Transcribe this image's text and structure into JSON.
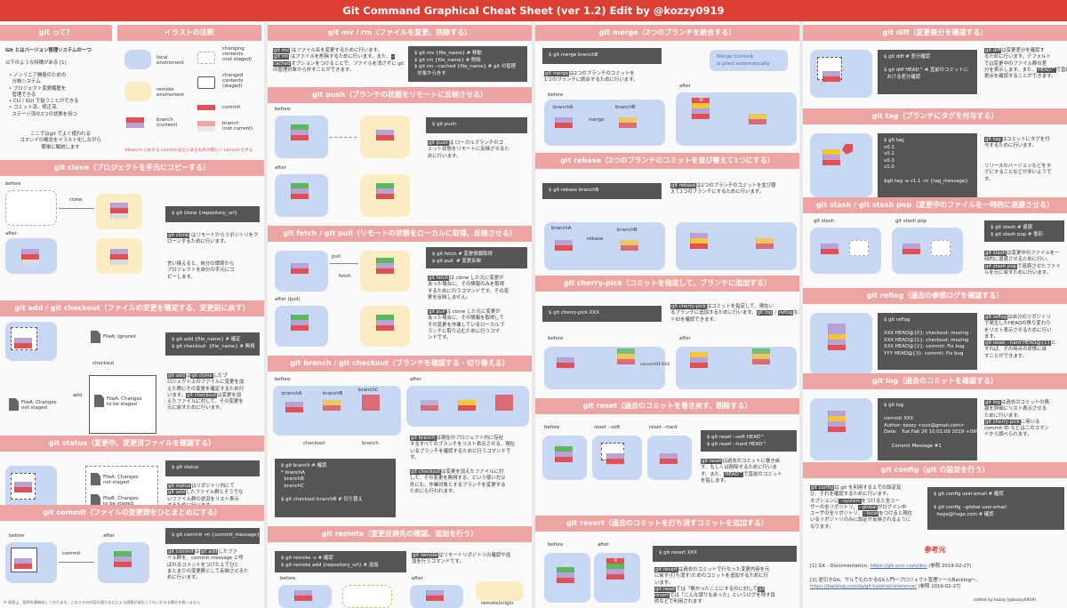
{
  "header": {
    "title": "Git Command Graphical Cheat Sheet (ver 1.2)  Edit by @kozzy0919"
  },
  "c1": {
    "sec_git": "git って？",
    "sec_legend": "イラストの注釈",
    "intro_bold": "Git とはバージョン管理システムの一つ",
    "intro_lead": "以下のような特徴がある [1]",
    "intro_items": [
      "ノンリニア開発のための",
      "分岐システム",
      "プロジェクト変更履歴を",
      "管理できる",
      "CLI / GUI で扱うことができる",
      "コミット済、修正済、",
      "ステージ済の3つの状態を持つ"
    ],
    "intro_note": "ここではgit でよく使われる\nコマンドの概念をイラスト化しながら\n簡単に解説します",
    "legend": {
      "local": "local\nenviroment",
      "remote": "remote\nenviroment",
      "branch_cur": "branch\n(current)",
      "changing": "changing\ncontents\n(not staged)",
      "changed": "changed\ncontents\n(staged)",
      "commit": "commit",
      "branch_nc": "branch\n(not current)",
      "note": "※branch における commit は上にあるものが新しい commit とする"
    },
    "sec_clone": "git clone（プロジェクトを手元にコピーする）",
    "clone": {
      "before": "before",
      "after": "after",
      "arrow": "clone",
      "cmd": "$ git clone {repository_url}",
      "kw": "git clone",
      "desc": "はリモートからリポジトリをクローンするために行います。",
      "desc2": "言い換えると、自分の環境から\nプロジェクトを自分の手元にコ\nピーします。"
    },
    "sec_add": "git add / git checkout（ファイルの変更を確定する、変更前に戻す）",
    "add": {
      "ignored": "FileA: Ignored",
      "cmd": "$ git add {file_name} # 確定\n$ git checkout  {file_name} # 無視",
      "checkout": "checkout",
      "add": "add",
      "notstaged": "FileA: Changes\nnot staged",
      "staged": "FileA: Changes\nto be staged",
      "kw1": "git add",
      "kw2": "git clone",
      "kw3": "git checkout",
      "desc_a": "は",
      "desc_b": "したプ\nロジェクト上のファイルに変更を加\nえた際にその変更を確定するため行\nいます。",
      "desc_c": "は変更を加\nえたファイルに対して、その変更を\n元に戻すために行います。"
    },
    "sec_status": "git status（変更中、変更済ファイルを確認する）",
    "status": {
      "cmd": "$ git status",
      "fa": "FileA: Changes\nnot staged",
      "fb": "FileB: Changes\nto be staged",
      "kw1": "git status",
      "kw2": "git add",
      "desc_a": "はリポジトリ内にて",
      "desc_b": "したファイル群とそうでな\nいファイル群の状況をリスト表示\nするために行います。"
    },
    "sec_commit": "git commit（ファイルの変更群をひとまとめにする）",
    "commit": {
      "before": "before",
      "after": "after",
      "arrow": "commit",
      "cmd": "$ git commit -m {commit_message}",
      "kw1": "git commit",
      "kw2": "git add",
      "desc_a": "は",
      "desc_b": "したファ\nイル群を、commit message と呼\nばれるコメントをつけた上でひと\nまとまりの変更群として反映させるた\nめに行います。"
    },
    "footer": "※ 表現上、説明を簡略化しております。このメモの内容の誤りなどによる損害が発生してもいかなる責任を負いません"
  },
  "c2": {
    "sec_mv": "git mv / rm（ファイルを変更、削除する）",
    "mv": {
      "kw1": "git mv",
      "kw2": "git rm",
      "kw3": "--cached",
      "d1": "はファイル名を変更するために行います。",
      "d2": "はファイルを削除するために行います。また、",
      "d3": "オプションをつけることで、ファイルを消さずに git の管理対象から外すことができます。",
      "cmd": "$ git mv {file_name} # 移動\n$ git rm {file_name} # 削除\n$ git rm --cached {file_name} # git の管理\n  対象から外す"
    },
    "sec_push": "git push（ブランチの状態をリモートに反映させる）",
    "push": {
      "before": "before",
      "after": "after",
      "cmd": "$ git push",
      "kw": "git push",
      "desc": "は ローカルブランチのコ\nミット状態をリモートに反映させるた\nめに行います。"
    },
    "sec_fetch": "git fetch / git pull（リモートの状態をローカルに取得、反映させる）",
    "fetch": {
      "pull": "pull",
      "fetch": "fetch",
      "after_pull": "after (pull)",
      "cmd": "$ git fetch # 変更情報取得\n$ git pull  # 変更反映",
      "kw1": "git fetch",
      "d1": "は clone した元に変更が\nあった場合に、その情報のみを取得\nするために行うコマンドです。その変\n更を反映しません。",
      "kw2": "git pull",
      "d2": "は clone した元に変更が\nあった場合に、その情報を取得して\nその変更を作業しているローカルブ\nランチに取り込むために行うコマ\nンドです。"
    },
    "sec_branch": "git branch / git checkout（ブランチを確認する・切り替える）",
    "branch": {
      "before": "before",
      "after": "after",
      "a": "branchA",
      "b": "branchB",
      "c": "branchC",
      "checkout": "checkout",
      "branch": "branch",
      "cmd": "$ git branch # 確認\n* branchA\n  branchB\n  branchC\n\n$ git checkout branchB # 切り替え",
      "kw1": "git branch",
      "d1": "は現在のプロジェクト内に存在\nするすべてのブランチをリスト表示させる、現在\nいるブランチを確認するために行うコマンドで\nす。",
      "kw2": "git checkout",
      "d2": "は変更を加えたファイルに対\nして、その変更を無視する、という使い方以\n外にも、作業対象とするブランチを変更する\nためにも行われます。"
    },
    "sec_remote": "git remote（変更反映先の確認、追加を行う）",
    "remote": {
      "cmd": "$ git remote -v # 確認\n$ git remote add {repository_url} # 追加",
      "kw": "git remote",
      "desc": "はリモートリポジトリの確認や追\n加を行うコマンドです。",
      "before": "before",
      "after": "after",
      "origin": "remote/origin"
    }
  },
  "c3": {
    "sec_merge": "git merge（2つのブランチを統合する）",
    "merge": {
      "cmd": "$ git merge branchB",
      "kw": "git merge",
      "desc": "は2つのブランチのコミットを\n1つのブランチに統合するために行います。",
      "before": "before",
      "after": "after",
      "a": "branchA",
      "b": "branchB",
      "arrow": "merge",
      "bubble": "Merge Commit\nis piled automatically",
      "m": "M"
    },
    "sec_rebase": "git rebase（2つのブランチのコミットを並び替えて1つにする）",
    "rebase": {
      "cmd": "$ git rebase branchB",
      "kw": "git rebase",
      "desc": "は2つのブランチのコミットを並び替\nえて1つのブランチにするために行います。",
      "a": "branchA",
      "b": "branchB",
      "arrow": "rebase"
    },
    "sec_cp": "git cherry-pick（コミットを指定して、ブランチに追加する）",
    "cp": {
      "cmd": "$ git cherry-pick XXX",
      "kw1": "git cherry-pick",
      "d1": "はコミットを指定して、現在い\nるブランチに追加するために行います。",
      "kw2": "git log",
      "kw3": "reflog",
      "d2": "などによって、指定するためのコミッ\nトIDを確認できます。",
      "before": "before",
      "after": "after",
      "id": "commitID:XXX"
    },
    "sec_reset": "git reset（過去のコミットを巻き戻す、削除する）",
    "reset": {
      "before": "before",
      "soft": "reset --soft",
      "hard": "reset --hard",
      "cmd": "$ git reset --soft HEAD^\n$ git reset --hard HEAD^",
      "kw": "git reset",
      "desc": "は過去のコミットに巻き戻\nす、もしくは削除するために行いま\nす。また、",
      "kw2": "HEAD^",
      "desc2": "で直前のコミット\nを指します。"
    },
    "sec_revert": "git revert（過去のコミットを打ち消すコミットを追加する）",
    "revert": {
      "before": "before",
      "after": "after",
      "cmd": "$ git revert XXX",
      "kw": "git revert",
      "desc": "は過去のコミットで行なった変更内容を元\nに戻す(打ち消す)ためのコミットを追加するために行\nいます。",
      "kw2": "git reset",
      "d2": "では「無かったことにするのに対して",
      "kw3": "git\nrevert",
      "d3": "では「こんな誤りもあった」というログを残す目\n的などで利用されます",
      "r": "R"
    }
  },
  "c4": {
    "sec_diff": "git diff（変更差分を確認する）",
    "diff": {
      "cmd": "$ git diff # 差分確認\n\n$ git diff HEAD^ # 直前のコミットに\n  おける差分確認",
      "kw": "git diff",
      "desc": "は変更差分を確認す\nるために行います。デフォルト\nでは変更中のファイル群の差\n分を表示します。また、",
      "kw2": "HEAD^",
      "desc2": "で直前のコミットにおける変\n更点を確認することができます。"
    },
    "sec_tag": "git tag（ブランチにタグを付与する）",
    "tag": {
      "cmd": "$ git tag\nv0.1\nv0.2\nv0.3\nv1.0\n\n$git tag -a v1.1 -m {tag_message}",
      "kw": "git tag",
      "desc": "はコミットにタグを付\n与するために行います。",
      "desc2": "リリースのバージョンなどをタ\nグにすることなどが多いようで\nす。"
    },
    "sec_stash": "git stash / git stash pop（変更中のファイルを一時的に退避させる）",
    "stash": {
      "l1": "git stash",
      "l2": "git stash pop",
      "cmd": "$ git stash # 退避\n$ git stash pop # 復旧",
      "kw": "git stash",
      "desc": "は変更中のファイルを一\n時的に退避させるために行い、",
      "kw2": "git stash pop",
      "desc2": "で退避させたファイ\nルを元に戻すために行います。"
    },
    "sec_reflog": "git reflog（過去の参照ログを確認する）",
    "reflog": {
      "cmd": "$ git reflog\n\nXXX HEAD@{0}: checkout: moving\nXXX HEAD@{1}: checkout: moving\nXXX HEAD@{2}: commit: Fix bug\nYYY HEAD@{3}: commit: Fix bug",
      "kw": "git reflog",
      "desc": "は自分のリポジトリ\nで発生したHEADの移り変わり\nをリスト表示させるために行い\nます。",
      "kw2": "git reset --hard HEAD@{1}",
      "desc2": "と\nすれば、その時点の状態に戻\nすことができます。"
    },
    "sec_log": "git log（過去のコミットを確認する）",
    "log": {
      "cmd": "$ git log\n\ncommit XXX\nAuthor: kozzy <xxx@gmail.com>\nDate:   Tue Feb 26 10:01:09 2019 +0900\n\n     Commit Message #1",
      "kw": "git log",
      "desc": "は過去のコミットの情\n報を詳細にリスト表示させる\nために行います。",
      "kw2": "git cherry-pick",
      "desc2": "に用いる\ncommit ID などはこのコマン\nドから調べられます。"
    },
    "sec_config": "git config（git の設定を行う）",
    "config": {
      "kw": "git config",
      "desc": "は git を利用する上での設定及\nび、それを確認するために行います。\nオプションに",
      "kw2": "--system",
      "desc2": "をつけると全ユー\nザーの全リポジトリ、",
      "kw3": "--global",
      "desc3": "がログイン中\nユーザの全リポジトリ、",
      "kw4": "--local",
      "desc4": "をつけると現在\nいるリポジトリのみに設定が反映されるように\nなります。",
      "cmd": "$ git config user.email # 確認\n\n$ git config --global user.email\n  hoge@hoge.com # 確認"
    },
    "sec_ref": "参考元",
    "ref": {
      "r1": "[1] Git - Documentation, ",
      "r1link": "https://git-scm.com/doc",
      "r1date": " (参照 2019-02-27)",
      "r2": "[2] 逆引きGit。サルでもわかるGit入門〜プロジェクト管理ツールBacklog〜,",
      "r2link": "https://backlog.com/ja/git-tutorial/reference/",
      "r2date": " (参照 2019-02-27)",
      "edited": "edited by kozzy (@kozzy0919)"
    }
  },
  "colors": {
    "banner": "#dc3f33",
    "section": "#eea4a2",
    "local": "#c8d8f4",
    "remote": "#fbecc2",
    "commit_red": "#e05055",
    "commit_yellow": "#f5c53a",
    "commit_green": "#5cb85c",
    "commit_purple": "#b9a2d6"
  }
}
